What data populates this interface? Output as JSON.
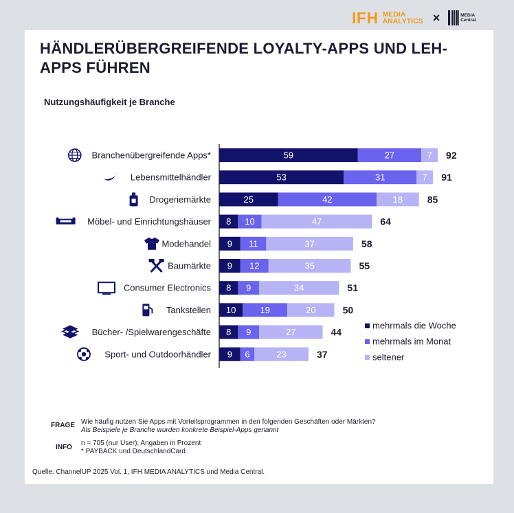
{
  "header": {
    "ifh": "IFH",
    "media_analytics_line1": "MEDIA",
    "media_analytics_line2": "ANALYTICS",
    "cross": "×",
    "media_central_line1": "MEDIA",
    "media_central_line2": "Central"
  },
  "title": "HÄNDLERÜBERGREIFENDE LOYALTY-APPS UND LEH-APPS FÜHREN",
  "subtitle": "Nutzungshäufigkeit je Branche",
  "colors": {
    "series1": "#13126b",
    "series2": "#6a63ee",
    "series3": "#b7b4f6",
    "axis": "#1c1c2e"
  },
  "chart_data": {
    "type": "bar",
    "orientation": "horizontal",
    "stacked": true,
    "categories": [
      "Branchenübergreifende Apps*",
      "Lebensmittelhändler",
      "Drogeriemärkte",
      "Möbel- und Einrichtungshäuser",
      "Modehandel",
      "Baumärkte",
      "Consumer Electronics",
      "Tankstellen",
      "Bücher- /Spielwarengeschäfte",
      "Sport- und Outdoorhändler"
    ],
    "icons": [
      "globe-icon",
      "banana-icon",
      "bottle-icon",
      "sofa-icon",
      "shirt-icon",
      "tools-icon",
      "monitor-icon",
      "fuel-pump-icon",
      "books-icon",
      "ball-icon"
    ],
    "series": [
      {
        "name": "mehrmals die Woche",
        "values": [
          59,
          53,
          25,
          8,
          9,
          9,
          8,
          10,
          8,
          9
        ]
      },
      {
        "name": "mehrmals im Monat",
        "values": [
          27,
          31,
          42,
          10,
          11,
          12,
          9,
          19,
          9,
          6
        ]
      },
      {
        "name": "seltener",
        "values": [
          7,
          7,
          18,
          47,
          37,
          35,
          34,
          20,
          27,
          23
        ]
      }
    ],
    "totals": [
      92,
      91,
      85,
      64,
      58,
      55,
      51,
      50,
      44,
      37
    ],
    "legend_position": "bottom-right",
    "grid": false
  },
  "footer": {
    "frage_label": "FRAGE",
    "frage_text": "Wie häufig nutzen Sie Apps mit Vorteilsprogrammen in den folgenden Geschäften oder Märkten?",
    "frage_note": "Als Beispiele je Branche wurden konkrete Beispiel-Apps genannt",
    "info_label": "INFO",
    "info_line1": "n = 705 (nur User); Angaben in Prozent",
    "info_line2": "* PAYBACK und DeutschlandCard",
    "source": "Quelle: ChannelUP 2025 Vol. 1, IFH MEDIA ANALYTICS und Media Central."
  }
}
